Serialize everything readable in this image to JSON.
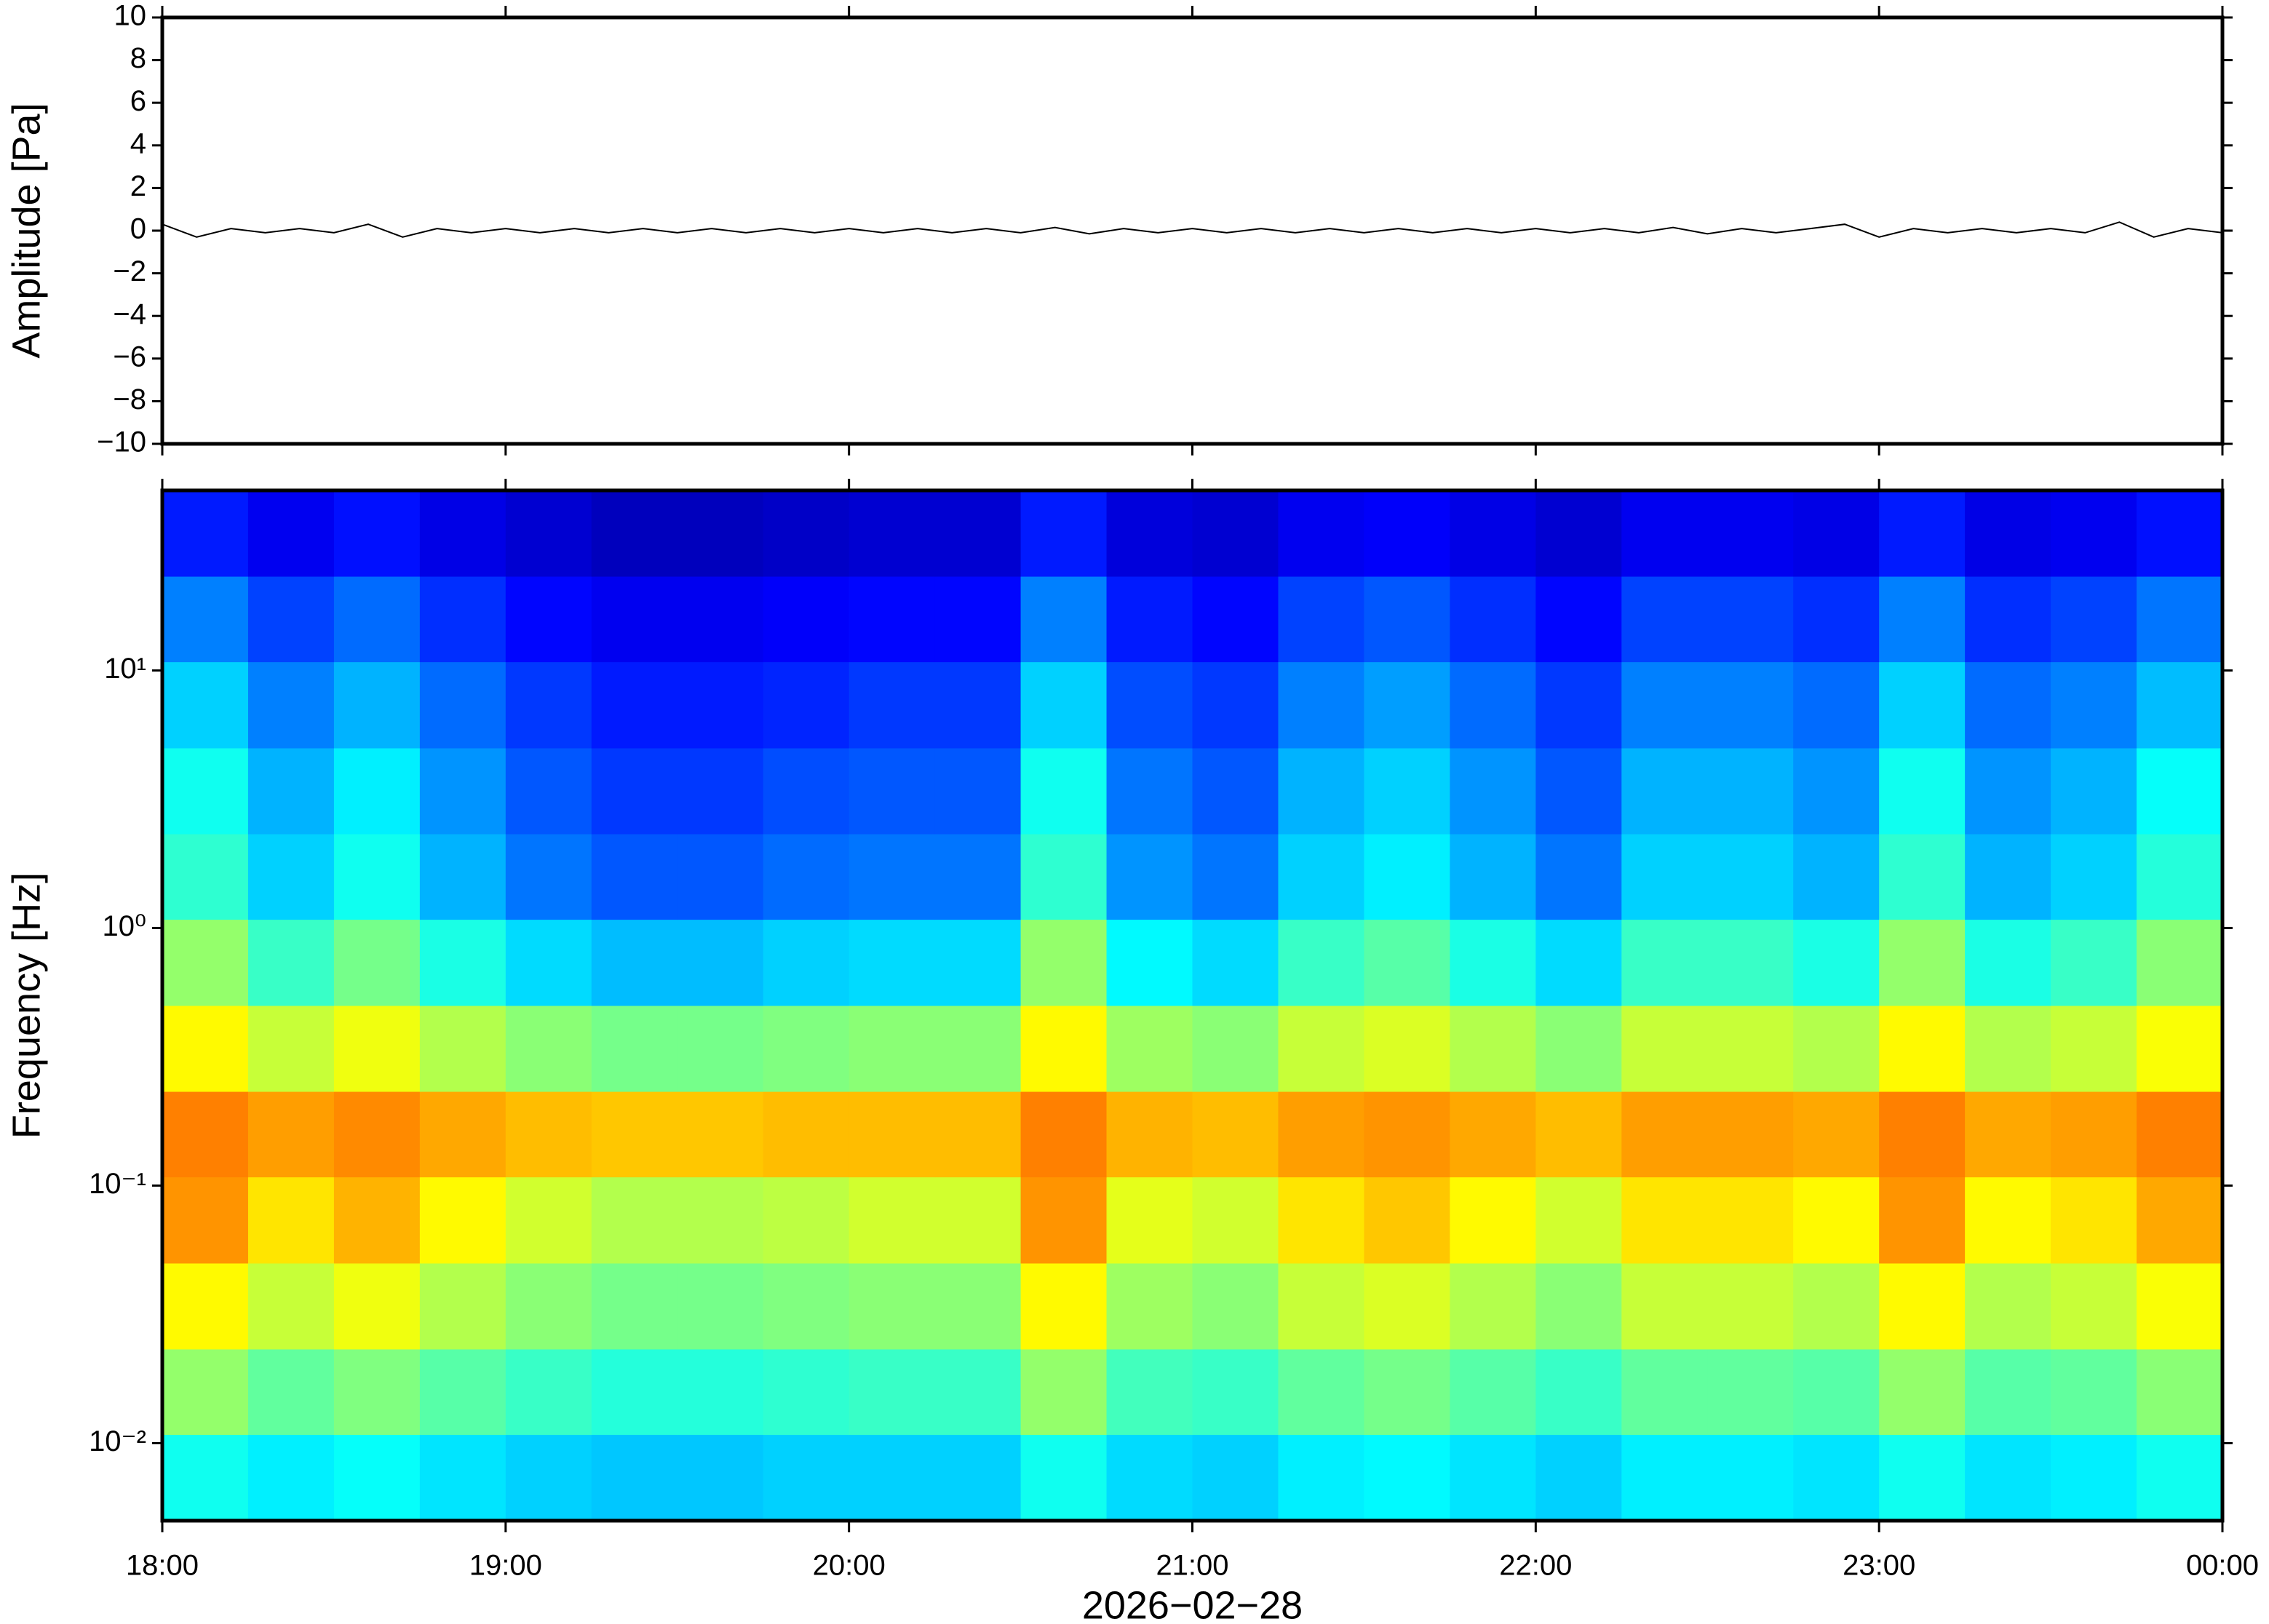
{
  "chart_data": [
    {
      "type": "line",
      "ylabel": "Amplitude [Pa]",
      "color": "#000000",
      "x": [
        18.0,
        18.1,
        18.2,
        18.3,
        18.4,
        18.5,
        18.6,
        18.7,
        18.8,
        18.9,
        19.0,
        19.1,
        19.2,
        19.3,
        19.4,
        19.5,
        19.6,
        19.7,
        19.8,
        19.9,
        20.0,
        20.1,
        20.2,
        20.3,
        20.4,
        20.5,
        20.6,
        20.7,
        20.8,
        20.9,
        21.0,
        21.1,
        21.2,
        21.3,
        21.4,
        21.5,
        21.6,
        21.7,
        21.8,
        21.9,
        22.0,
        22.1,
        22.2,
        22.3,
        22.4,
        22.5,
        22.6,
        22.7,
        22.8,
        22.9,
        23.0,
        23.1,
        23.2,
        23.3,
        23.4,
        23.5,
        23.6,
        23.7,
        23.8,
        23.9,
        24.0
      ],
      "values": [
        0.3,
        -0.3,
        0.1,
        -0.1,
        0.1,
        -0.1,
        0.3,
        -0.3,
        0.1,
        -0.1,
        0.1,
        -0.1,
        0.1,
        -0.1,
        0.1,
        -0.1,
        0.1,
        -0.1,
        0.1,
        -0.1,
        0.1,
        -0.1,
        0.1,
        -0.1,
        0.1,
        -0.1,
        0.15,
        -0.15,
        0.1,
        -0.1,
        0.1,
        -0.1,
        0.1,
        -0.1,
        0.1,
        -0.1,
        0.1,
        -0.1,
        0.1,
        -0.1,
        0.1,
        -0.1,
        0.1,
        -0.1,
        0.15,
        -0.15,
        0.1,
        -0.1,
        0.1,
        0.3,
        -0.3,
        0.1,
        -0.1,
        0.1,
        -0.1,
        0.1,
        -0.1,
        0.4,
        -0.3,
        0.1,
        -0.1
      ],
      "ylim": [
        -10,
        10
      ],
      "yticks": [
        {
          "value": -10,
          "label": "−10"
        },
        {
          "value": -8,
          "label": "−8"
        },
        {
          "value": -6,
          "label": "−6"
        },
        {
          "value": -4,
          "label": "−4"
        },
        {
          "value": -2,
          "label": "−2"
        },
        0,
        2,
        4,
        6,
        8,
        10
      ],
      "xlim": [
        18,
        24
      ],
      "xticks": [
        18,
        19,
        20,
        21,
        22,
        23,
        24
      ]
    },
    {
      "type": "spectrogram",
      "ylabel": "Frequency [Hz]",
      "xlabel": "2026−02−28",
      "colormap": "jet",
      "log_y": true,
      "xbins": [
        18,
        18.25,
        18.5,
        18.75,
        19,
        19.25,
        19.5,
        19.75,
        20,
        20.25,
        20.5,
        20.75,
        21,
        21.25,
        21.5,
        21.75,
        22,
        22.25,
        22.5,
        22.75,
        23,
        23.25,
        23.5,
        23.75,
        24
      ],
      "ybins": [
        0.005,
        0.0108,
        0.0232,
        0.05,
        0.108,
        0.232,
        0.5,
        1.08,
        2.32,
        5,
        10.8,
        23.2,
        50
      ],
      "z": [
        [
          0.39,
          0.36,
          0.38,
          0.35,
          0.33,
          0.32,
          0.32,
          0.33,
          0.33,
          0.33,
          0.39,
          0.34,
          0.33,
          0.36,
          0.37,
          0.35,
          0.33,
          0.36,
          0.36,
          0.35,
          0.39,
          0.35,
          0.36,
          0.39
        ],
        [
          0.52,
          0.47,
          0.5,
          0.46,
          0.43,
          0.41,
          0.41,
          0.42,
          0.43,
          0.43,
          0.52,
          0.44,
          0.43,
          0.47,
          0.49,
          0.46,
          0.43,
          0.47,
          0.47,
          0.46,
          0.52,
          0.46,
          0.47,
          0.51
        ],
        [
          0.63,
          0.57,
          0.61,
          0.55,
          0.51,
          0.49,
          0.49,
          0.5,
          0.51,
          0.51,
          0.63,
          0.53,
          0.51,
          0.57,
          0.59,
          0.55,
          0.51,
          0.57,
          0.57,
          0.55,
          0.63,
          0.55,
          0.57,
          0.62
        ],
        [
          0.73,
          0.65,
          0.7,
          0.63,
          0.58,
          0.55,
          0.55,
          0.56,
          0.58,
          0.58,
          0.73,
          0.6,
          0.58,
          0.65,
          0.68,
          0.63,
          0.58,
          0.65,
          0.65,
          0.63,
          0.73,
          0.63,
          0.65,
          0.71
        ],
        [
          0.75,
          0.72,
          0.74,
          0.71,
          0.69,
          0.68,
          0.68,
          0.69,
          0.69,
          0.69,
          0.75,
          0.7,
          0.69,
          0.72,
          0.73,
          0.71,
          0.69,
          0.72,
          0.72,
          0.71,
          0.75,
          0.71,
          0.72,
          0.75
        ],
        [
          0.63,
          0.57,
          0.61,
          0.55,
          0.51,
          0.49,
          0.49,
          0.5,
          0.51,
          0.51,
          0.63,
          0.53,
          0.51,
          0.57,
          0.59,
          0.55,
          0.51,
          0.57,
          0.57,
          0.55,
          0.63,
          0.55,
          0.57,
          0.62
        ],
        [
          0.52,
          0.43,
          0.49,
          0.4,
          0.34,
          0.31,
          0.31,
          0.33,
          0.34,
          0.34,
          0.52,
          0.37,
          0.34,
          0.43,
          0.46,
          0.4,
          0.34,
          0.43,
          0.43,
          0.4,
          0.52,
          0.4,
          0.43,
          0.51
        ],
        [
          0.42,
          0.33,
          0.39,
          0.3,
          0.24,
          0.21,
          0.21,
          0.23,
          0.24,
          0.24,
          0.42,
          0.27,
          0.24,
          0.33,
          0.36,
          0.3,
          0.24,
          0.33,
          0.33,
          0.3,
          0.42,
          0.3,
          0.33,
          0.41
        ],
        [
          0.39,
          0.3,
          0.36,
          0.27,
          0.21,
          0.18,
          0.18,
          0.2,
          0.21,
          0.21,
          0.39,
          0.24,
          0.21,
          0.3,
          0.33,
          0.27,
          0.21,
          0.3,
          0.3,
          0.27,
          0.39,
          0.27,
          0.3,
          0.38
        ],
        [
          0.33,
          0.25,
          0.3,
          0.23,
          0.18,
          0.15,
          0.15,
          0.16,
          0.18,
          0.18,
          0.33,
          0.2,
          0.18,
          0.25,
          0.28,
          0.23,
          0.18,
          0.25,
          0.25,
          0.23,
          0.33,
          0.23,
          0.25,
          0.31
        ],
        [
          0.25,
          0.19,
          0.23,
          0.17,
          0.13,
          0.11,
          0.11,
          0.12,
          0.13,
          0.13,
          0.25,
          0.15,
          0.13,
          0.19,
          0.21,
          0.17,
          0.13,
          0.19,
          0.19,
          0.17,
          0.25,
          0.17,
          0.19,
          0.24
        ],
        [
          0.15,
          0.11,
          0.14,
          0.1,
          0.08,
          0.06,
          0.06,
          0.07,
          0.08,
          0.08,
          0.15,
          0.09,
          0.08,
          0.11,
          0.12,
          0.1,
          0.08,
          0.11,
          0.11,
          0.1,
          0.15,
          0.1,
          0.11,
          0.14
        ]
      ],
      "ylim": [
        0.005,
        50
      ],
      "yticks": [
        {
          "value": 0.01,
          "label": "10⁻²"
        },
        {
          "value": 0.1,
          "label": "10⁻¹"
        },
        {
          "value": 1,
          "label": "10⁰"
        },
        {
          "value": 10,
          "label": "10¹"
        }
      ],
      "xlim": [
        18,
        24
      ],
      "xticks": [
        {
          "value": 18,
          "label": "18:00"
        },
        {
          "value": 19,
          "label": "19:00"
        },
        {
          "value": 20,
          "label": "20:00"
        },
        {
          "value": 21,
          "label": "21:00"
        },
        {
          "value": 22,
          "label": "22:00"
        },
        {
          "value": 23,
          "label": "23:00"
        },
        {
          "value": 24,
          "label": "00:00"
        }
      ]
    }
  ]
}
